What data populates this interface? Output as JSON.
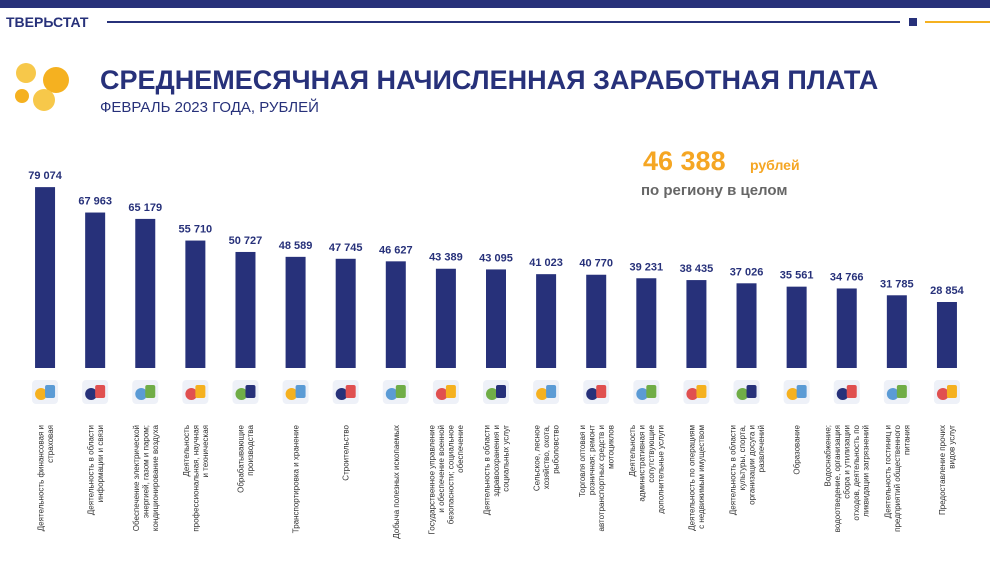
{
  "header": {
    "brand": "ТВЕРЬСТАТ"
  },
  "chart_data": {
    "type": "bar",
    "title": "СРЕДНЕМЕСЯЧНАЯ НАЧИСЛЕННАЯ ЗАРАБОТНАЯ ПЛАТА",
    "subtitle": "ФЕВРАЛЬ 2023 ГОДА, РУБЛЕЙ",
    "total": {
      "value": 46388,
      "value_label": "46 388",
      "unit": "рублей",
      "note": "по региону в целом"
    },
    "color": "#27317a",
    "ylim": [
      0,
      80000
    ],
    "categories": [
      "Деятельность финансовая и страховая",
      "Деятельность в области информации и связи",
      "Обеспечение электрической энергией, газом и паром; кондиционирование воздуха",
      "Деятельность профессиональная, научная и техническая",
      "Обрабатывающие производства",
      "Транспортировка и хранение",
      "Строительство",
      "Добыча полезных ископаемых",
      "Государственное управление и обеспечение военной безопасности; социальное обеспечение",
      "Деятельность в области здравоохранения и социальных услуг",
      "Сельское, лесное хозяйство, охота, рыболовство",
      "Торговля оптовая и розничная; ремонт автотранспортных средств и мотоциклов",
      "Деятельность административная и сопутствующие дополнительные услуги",
      "Деятельность по операциям с недвижимым имуществом",
      "Деятельность в области культуры, спорта, организации досуга и развлечений",
      "Образование",
      "Водоснабжение; водоотведение, организация сбора и утилизации отходов, деятельность по ликвидации загрязнений",
      "Деятельность гостиниц и предприятий общественного питания",
      "Предоставление прочих видов услуг"
    ],
    "values": [
      79074,
      67963,
      65179,
      55710,
      50727,
      48589,
      47745,
      46627,
      43389,
      43095,
      41023,
      40770,
      39231,
      38435,
      37026,
      35561,
      34766,
      31785,
      28854
    ],
    "value_labels": [
      "79 074",
      "67 963",
      "65 179",
      "55 710",
      "50 727",
      "48 589",
      "47 745",
      "46 627",
      "43 389",
      "43 095",
      "41 023",
      "40 770",
      "39 231",
      "38 435",
      "37 026",
      "35 561",
      "34 766",
      "31 785",
      "28 854"
    ]
  }
}
